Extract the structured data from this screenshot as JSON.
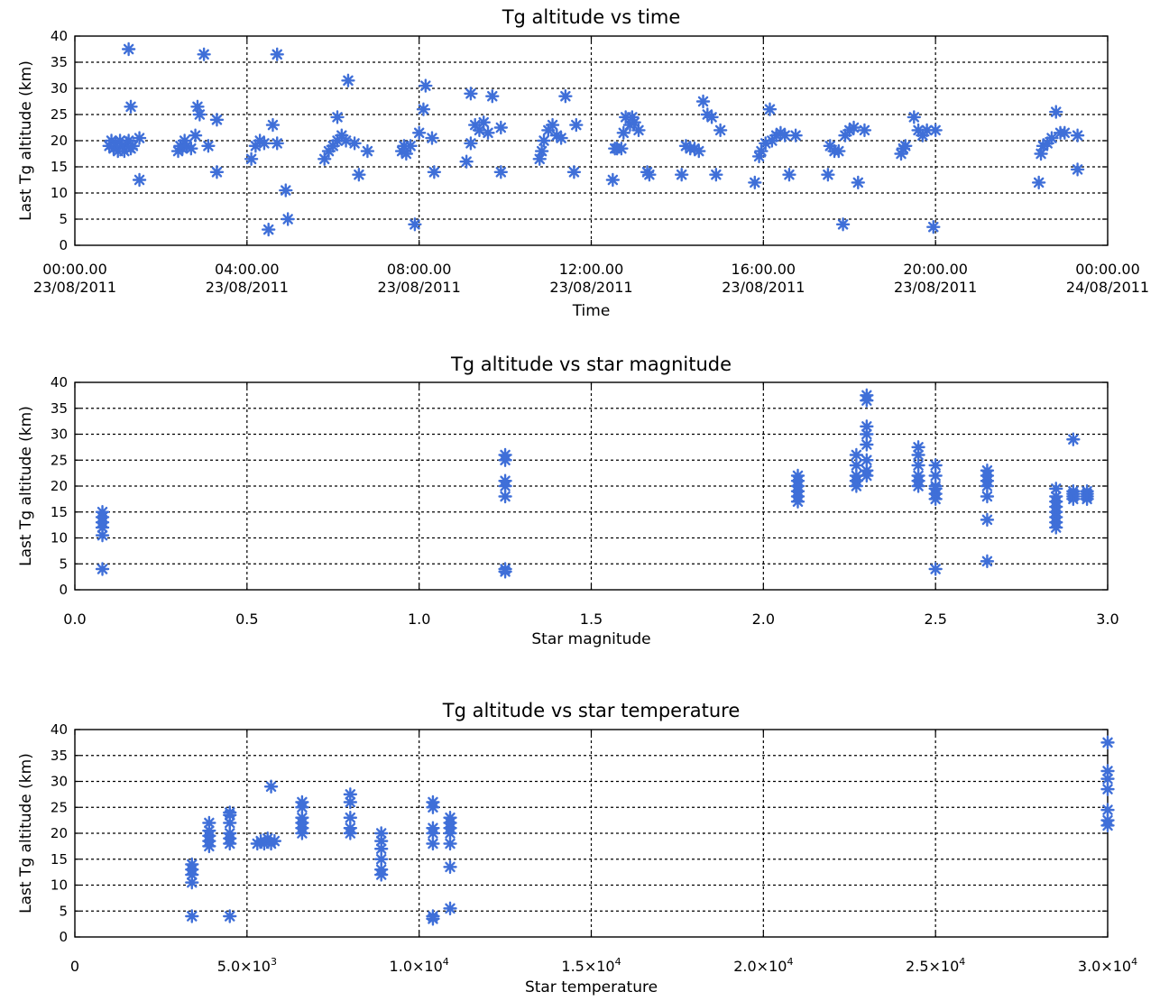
{
  "chart_data": [
    {
      "type": "scatter",
      "title": "Tg altitude vs time",
      "xlabel": "Time",
      "ylabel": "Last Tg altitude (km)",
      "xlim": [
        0,
        24
      ],
      "ylim": [
        0,
        40
      ],
      "yticks": [
        "0",
        "5",
        "10",
        "15",
        "20",
        "25",
        "30",
        "35",
        "40"
      ],
      "xticks": [
        {
          "value": 0,
          "label": [
            "00:00.00",
            "23/08/2011"
          ]
        },
        {
          "value": 4,
          "label": [
            "04:00.00",
            "23/08/2011"
          ]
        },
        {
          "value": 8,
          "label": [
            "08:00.00",
            "23/08/2011"
          ]
        },
        {
          "value": 12,
          "label": [
            "12:00.00",
            "23/08/2011"
          ]
        },
        {
          "value": 16,
          "label": [
            "16:00.00",
            "23/08/2011"
          ]
        },
        {
          "value": 20,
          "label": [
            "20:00.00",
            "23/08/2011"
          ]
        },
        {
          "value": 24,
          "label": [
            "00:00.00",
            "24/08/2011"
          ]
        }
      ],
      "marker_color": "#3f6fd8",
      "grid": true,
      "points": [
        [
          0.8,
          19
        ],
        [
          0.85,
          20
        ],
        [
          0.9,
          18.5
        ],
        [
          0.95,
          19.5
        ],
        [
          1.0,
          18
        ],
        [
          1.05,
          20
        ],
        [
          1.1,
          19
        ],
        [
          1.15,
          18
        ],
        [
          1.2,
          19.5
        ],
        [
          1.25,
          20
        ],
        [
          1.3,
          18.5
        ],
        [
          1.35,
          19
        ],
        [
          1.25,
          37.5
        ],
        [
          1.3,
          26.5
        ],
        [
          1.5,
          20.5
        ],
        [
          1.5,
          12.5
        ],
        [
          2.4,
          18
        ],
        [
          2.45,
          19
        ],
        [
          2.5,
          18.5
        ],
        [
          2.55,
          20
        ],
        [
          2.6,
          19
        ],
        [
          2.7,
          18.5
        ],
        [
          2.8,
          21
        ],
        [
          2.85,
          26.5
        ],
        [
          2.9,
          25
        ],
        [
          3.0,
          36.5
        ],
        [
          3.1,
          19
        ],
        [
          3.3,
          24
        ],
        [
          3.3,
          14
        ],
        [
          4.1,
          16.5
        ],
        [
          4.2,
          19
        ],
        [
          4.3,
          20
        ],
        [
          4.4,
          19.5
        ],
        [
          4.5,
          3
        ],
        [
          4.6,
          23
        ],
        [
          4.7,
          19.5
        ],
        [
          4.7,
          36.5
        ],
        [
          4.9,
          10.5
        ],
        [
          4.95,
          5
        ],
        [
          5.8,
          16.5
        ],
        [
          5.9,
          18
        ],
        [
          6.0,
          19
        ],
        [
          6.1,
          20
        ],
        [
          6.1,
          24.5
        ],
        [
          6.2,
          21
        ],
        [
          6.3,
          20
        ],
        [
          6.35,
          31.5
        ],
        [
          6.5,
          19.5
        ],
        [
          6.6,
          13.5
        ],
        [
          6.8,
          18
        ],
        [
          7.6,
          18
        ],
        [
          7.65,
          19
        ],
        [
          7.7,
          17.5
        ],
        [
          7.8,
          19
        ],
        [
          7.9,
          4
        ],
        [
          8.0,
          21.5
        ],
        [
          8.1,
          26
        ],
        [
          8.15,
          30.5
        ],
        [
          8.3,
          20.5
        ],
        [
          8.35,
          14
        ],
        [
          9.1,
          16
        ],
        [
          9.2,
          19.5
        ],
        [
          9.2,
          29
        ],
        [
          9.3,
          23
        ],
        [
          9.4,
          22
        ],
        [
          9.5,
          23.5
        ],
        [
          9.6,
          21.5
        ],
        [
          9.7,
          28.5
        ],
        [
          9.9,
          14
        ],
        [
          9.9,
          22.5
        ],
        [
          10.8,
          16.5
        ],
        [
          10.85,
          18
        ],
        [
          10.9,
          20
        ],
        [
          11.0,
          22
        ],
        [
          11.1,
          23
        ],
        [
          11.2,
          21
        ],
        [
          11.3,
          20.5
        ],
        [
          11.4,
          28.5
        ],
        [
          11.6,
          14
        ],
        [
          11.65,
          23
        ],
        [
          12.5,
          12.5
        ],
        [
          12.55,
          18.5
        ],
        [
          12.6,
          18.5
        ],
        [
          12.7,
          18.5
        ],
        [
          12.75,
          21.5
        ],
        [
          12.8,
          24.5
        ],
        [
          12.9,
          23
        ],
        [
          12.95,
          24.5
        ],
        [
          13.0,
          23.5
        ],
        [
          13.1,
          22
        ],
        [
          13.3,
          14
        ],
        [
          13.35,
          13.5
        ],
        [
          14.1,
          13.5
        ],
        [
          14.2,
          19
        ],
        [
          14.3,
          18.5
        ],
        [
          14.4,
          18.5
        ],
        [
          14.5,
          18
        ],
        [
          14.6,
          27.5
        ],
        [
          14.7,
          25
        ],
        [
          14.8,
          24.5
        ],
        [
          14.9,
          13.5
        ],
        [
          15.0,
          22
        ],
        [
          15.8,
          12
        ],
        [
          15.9,
          17
        ],
        [
          15.95,
          18
        ],
        [
          16.05,
          19.5
        ],
        [
          16.15,
          26
        ],
        [
          16.2,
          20
        ],
        [
          16.3,
          21
        ],
        [
          16.4,
          21.5
        ],
        [
          16.5,
          21
        ],
        [
          16.6,
          13.5
        ],
        [
          16.75,
          21
        ],
        [
          17.5,
          13.5
        ],
        [
          17.55,
          19
        ],
        [
          17.65,
          18
        ],
        [
          17.75,
          18
        ],
        [
          17.85,
          4
        ],
        [
          17.9,
          21
        ],
        [
          18.0,
          22
        ],
        [
          18.1,
          22.5
        ],
        [
          18.2,
          12
        ],
        [
          18.35,
          22
        ],
        [
          19.2,
          17.5
        ],
        [
          19.25,
          18.5
        ],
        [
          19.3,
          19
        ],
        [
          19.5,
          24.5
        ],
        [
          19.6,
          22
        ],
        [
          19.7,
          21
        ],
        [
          19.8,
          22
        ],
        [
          19.95,
          3.5
        ],
        [
          20.0,
          22
        ],
        [
          22.4,
          12
        ],
        [
          22.45,
          17.5
        ],
        [
          22.5,
          19
        ],
        [
          22.6,
          19.5
        ],
        [
          22.7,
          20.5
        ],
        [
          22.8,
          25.5
        ],
        [
          22.9,
          21.5
        ],
        [
          23.0,
          21.5
        ],
        [
          23.3,
          21
        ],
        [
          23.3,
          14.5
        ]
      ]
    },
    {
      "type": "scatter",
      "title": "Tg altitude vs star magnitude",
      "xlabel": "Star magnitude",
      "ylabel": "Last Tg altitude (km)",
      "xlim": [
        0,
        3
      ],
      "ylim": [
        0,
        40
      ],
      "yticks": [
        "0",
        "5",
        "10",
        "15",
        "20",
        "25",
        "30",
        "35",
        "40"
      ],
      "xticks": [
        {
          "value": 0,
          "label": [
            "0.0"
          ]
        },
        {
          "value": 0.5,
          "label": [
            "0.5"
          ]
        },
        {
          "value": 1.0,
          "label": [
            "1.0"
          ]
        },
        {
          "value": 1.5,
          "label": [
            "1.5"
          ]
        },
        {
          "value": 2.0,
          "label": [
            "2.0"
          ]
        },
        {
          "value": 2.5,
          "label": [
            "2.5"
          ]
        },
        {
          "value": 3.0,
          "label": [
            "3.0"
          ]
        }
      ],
      "marker_color": "#3f6fd8",
      "grid": true,
      "points": [
        [
          0.08,
          4
        ],
        [
          0.08,
          10.5
        ],
        [
          0.08,
          12
        ],
        [
          0.08,
          13
        ],
        [
          0.08,
          14
        ],
        [
          0.08,
          15
        ],
        [
          1.25,
          3.5
        ],
        [
          1.25,
          4
        ],
        [
          1.25,
          18
        ],
        [
          1.25,
          20
        ],
        [
          1.25,
          21
        ],
        [
          1.25,
          25
        ],
        [
          1.25,
          26
        ],
        [
          2.1,
          17
        ],
        [
          2.1,
          18
        ],
        [
          2.1,
          19
        ],
        [
          2.1,
          20
        ],
        [
          2.1,
          21
        ],
        [
          2.1,
          22
        ],
        [
          2.27,
          20
        ],
        [
          2.27,
          21
        ],
        [
          2.27,
          22
        ],
        [
          2.27,
          24
        ],
        [
          2.27,
          26
        ],
        [
          2.3,
          22
        ],
        [
          2.3,
          23
        ],
        [
          2.3,
          25
        ],
        [
          2.3,
          28
        ],
        [
          2.3,
          30
        ],
        [
          2.3,
          31.5
        ],
        [
          2.3,
          36.5
        ],
        [
          2.3,
          37.5
        ],
        [
          2.45,
          20
        ],
        [
          2.45,
          21
        ],
        [
          2.45,
          22
        ],
        [
          2.45,
          24
        ],
        [
          2.45,
          26
        ],
        [
          2.45,
          27.5
        ],
        [
          2.5,
          4
        ],
        [
          2.5,
          17.5
        ],
        [
          2.5,
          18.5
        ],
        [
          2.5,
          19.5
        ],
        [
          2.5,
          20
        ],
        [
          2.5,
          22
        ],
        [
          2.5,
          24
        ],
        [
          2.65,
          5.5
        ],
        [
          2.65,
          13.5
        ],
        [
          2.65,
          18
        ],
        [
          2.65,
          20
        ],
        [
          2.65,
          21
        ],
        [
          2.65,
          22
        ],
        [
          2.65,
          23
        ],
        [
          2.85,
          12
        ],
        [
          2.85,
          13
        ],
        [
          2.85,
          14
        ],
        [
          2.85,
          15
        ],
        [
          2.85,
          16
        ],
        [
          2.85,
          17
        ],
        [
          2.85,
          18
        ],
        [
          2.85,
          19.5
        ],
        [
          2.9,
          17.5
        ],
        [
          2.9,
          18
        ],
        [
          2.9,
          18.5
        ],
        [
          2.9,
          19
        ],
        [
          2.9,
          29
        ],
        [
          2.94,
          17.5
        ],
        [
          2.94,
          18
        ],
        [
          2.94,
          18.5
        ],
        [
          2.94,
          19
        ]
      ]
    },
    {
      "type": "scatter",
      "title": "Tg altitude vs star temperature",
      "xlabel": "Star temperature",
      "ylabel": "Last Tg altitude (km)",
      "xlim": [
        0,
        30000
      ],
      "ylim": [
        0,
        40
      ],
      "yticks": [
        "0",
        "5",
        "10",
        "15",
        "20",
        "25",
        "30",
        "35",
        "40"
      ],
      "xticks": [
        {
          "value": 0,
          "label": [
            "0"
          ]
        },
        {
          "value": 5000,
          "label": [
            "5.0×10",
            "3"
          ]
        },
        {
          "value": 10000,
          "label": [
            "1.0×10",
            "4"
          ]
        },
        {
          "value": 15000,
          "label": [
            "1.5×10",
            "4"
          ]
        },
        {
          "value": 20000,
          "label": [
            "2.0×10",
            "4"
          ]
        },
        {
          "value": 25000,
          "label": [
            "2.5×10",
            "4"
          ]
        },
        {
          "value": 30000,
          "label": [
            "3.0×10",
            "4"
          ]
        }
      ],
      "marker_color": "#3f6fd8",
      "grid": true,
      "points": [
        [
          3400,
          4
        ],
        [
          3400,
          10.5
        ],
        [
          3400,
          12
        ],
        [
          3400,
          13
        ],
        [
          3400,
          14
        ],
        [
          3900,
          17.5
        ],
        [
          3900,
          18.5
        ],
        [
          3900,
          19.5
        ],
        [
          3900,
          20.5
        ],
        [
          3900,
          22
        ],
        [
          4500,
          4
        ],
        [
          4500,
          18
        ],
        [
          4500,
          19
        ],
        [
          4500,
          20
        ],
        [
          4500,
          22
        ],
        [
          4500,
          23.5
        ],
        [
          4500,
          24
        ],
        [
          5300,
          18
        ],
        [
          5400,
          18.5
        ],
        [
          5500,
          18
        ],
        [
          5600,
          19
        ],
        [
          5700,
          18
        ],
        [
          5700,
          29
        ],
        [
          5800,
          18.5
        ],
        [
          6600,
          20
        ],
        [
          6600,
          21
        ],
        [
          6600,
          22
        ],
        [
          6600,
          23
        ],
        [
          6600,
          25
        ],
        [
          6600,
          26
        ],
        [
          8000,
          20
        ],
        [
          8000,
          21
        ],
        [
          8000,
          23
        ],
        [
          8000,
          26
        ],
        [
          8000,
          27.5
        ],
        [
          8900,
          12
        ],
        [
          8900,
          13
        ],
        [
          8900,
          15
        ],
        [
          8900,
          17
        ],
        [
          8900,
          18.5
        ],
        [
          8900,
          20
        ],
        [
          10400,
          3.5
        ],
        [
          10400,
          4
        ],
        [
          10400,
          18
        ],
        [
          10400,
          20
        ],
        [
          10400,
          21
        ],
        [
          10400,
          25
        ],
        [
          10400,
          26
        ],
        [
          10900,
          5.5
        ],
        [
          10900,
          13.5
        ],
        [
          10900,
          18
        ],
        [
          10900,
          20
        ],
        [
          10900,
          21
        ],
        [
          10900,
          22
        ],
        [
          10900,
          23
        ],
        [
          30000,
          21.5
        ],
        [
          30000,
          22.5
        ],
        [
          30000,
          24.5
        ],
        [
          30000,
          28.5
        ],
        [
          30000,
          30.5
        ],
        [
          30000,
          32
        ],
        [
          30000,
          37.5
        ]
      ]
    }
  ]
}
